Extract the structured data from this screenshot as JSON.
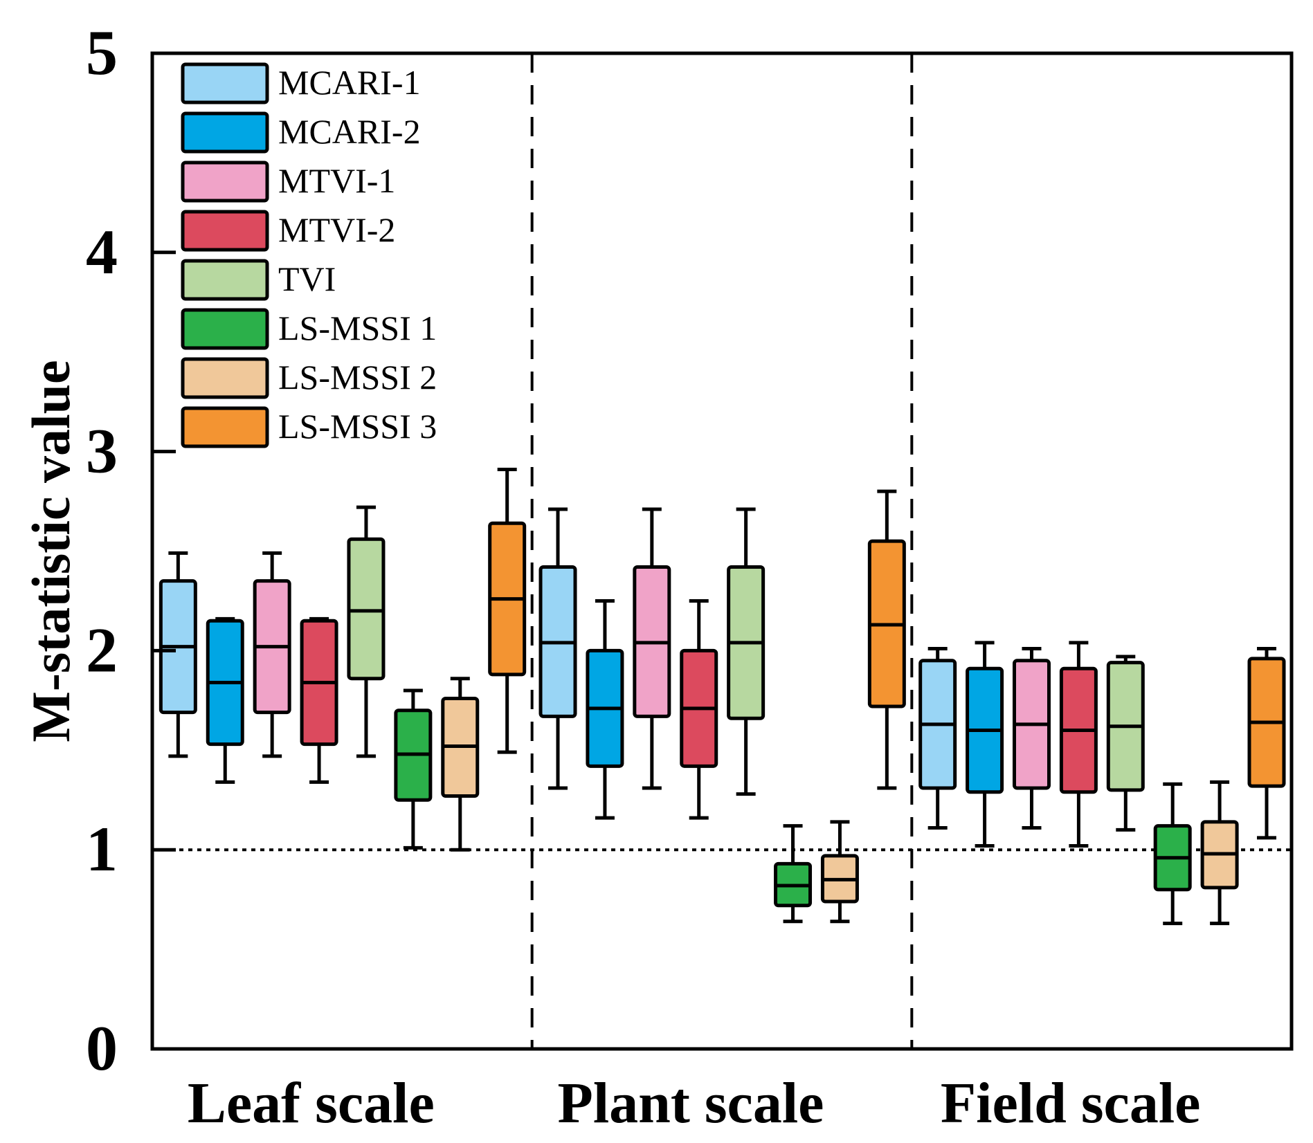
{
  "chart_data": {
    "type": "box",
    "title": "",
    "xlabel": "",
    "ylabel": "M-statistic value",
    "ylim": [
      0,
      5
    ],
    "yticks": [
      0,
      1,
      2,
      3,
      4,
      5
    ],
    "reference_line": {
      "y": 1,
      "style": "dotted"
    },
    "group_separators": "dashed",
    "groups": [
      "Leaf scale",
      "Plant scale",
      "Field scale"
    ],
    "legend": [
      {
        "name": "MCARI-1",
        "color": "#99d5f5"
      },
      {
        "name": "MCARI-2",
        "color": "#00a6e4"
      },
      {
        "name": "MTVI-1",
        "color": "#f0a3c8"
      },
      {
        "name": "MTVI-2",
        "color": "#dc4a5e"
      },
      {
        "name": "TVI",
        "color": "#b7d8a0"
      },
      {
        "name": "LS-MSSI 1",
        "color": "#2bb04a"
      },
      {
        "name": "LS-MSSI 2",
        "color": "#f0c89a"
      },
      {
        "name": "LS-MSSI 3",
        "color": "#f39432"
      }
    ],
    "series": [
      {
        "name": "MCARI-1",
        "color": "#99d5f5",
        "boxes": [
          {
            "group": "Leaf scale",
            "min": 1.47,
            "q1": 1.69,
            "median": 2.02,
            "q3": 2.35,
            "max": 2.49
          },
          {
            "group": "Plant scale",
            "min": 1.31,
            "q1": 1.67,
            "median": 2.04,
            "q3": 2.42,
            "max": 2.71
          },
          {
            "group": "Field scale",
            "min": 1.11,
            "q1": 1.31,
            "median": 1.63,
            "q3": 1.95,
            "max": 2.01
          }
        ]
      },
      {
        "name": "MCARI-2",
        "color": "#00a6e4",
        "boxes": [
          {
            "group": "Leaf scale",
            "min": 1.34,
            "q1": 1.53,
            "median": 1.84,
            "q3": 2.15,
            "max": 2.16
          },
          {
            "group": "Plant scale",
            "min": 1.16,
            "q1": 1.42,
            "median": 1.71,
            "q3": 2.0,
            "max": 2.25
          },
          {
            "group": "Field scale",
            "min": 1.02,
            "q1": 1.29,
            "median": 1.6,
            "q3": 1.91,
            "max": 2.04
          }
        ]
      },
      {
        "name": "MTVI-1",
        "color": "#f0a3c8",
        "boxes": [
          {
            "group": "Leaf scale",
            "min": 1.47,
            "q1": 1.69,
            "median": 2.02,
            "q3": 2.35,
            "max": 2.49
          },
          {
            "group": "Plant scale",
            "min": 1.31,
            "q1": 1.67,
            "median": 2.04,
            "q3": 2.42,
            "max": 2.71
          },
          {
            "group": "Field scale",
            "min": 1.11,
            "q1": 1.31,
            "median": 1.63,
            "q3": 1.95,
            "max": 2.01
          }
        ]
      },
      {
        "name": "MTVI-2",
        "color": "#dc4a5e",
        "boxes": [
          {
            "group": "Leaf scale",
            "min": 1.34,
            "q1": 1.53,
            "median": 1.84,
            "q3": 2.15,
            "max": 2.16
          },
          {
            "group": "Plant scale",
            "min": 1.16,
            "q1": 1.42,
            "median": 1.71,
            "q3": 2.0,
            "max": 2.25
          },
          {
            "group": "Field scale",
            "min": 1.02,
            "q1": 1.29,
            "median": 1.6,
            "q3": 1.91,
            "max": 2.04
          }
        ]
      },
      {
        "name": "TVI",
        "color": "#b7d8a0",
        "boxes": [
          {
            "group": "Leaf scale",
            "min": 1.47,
            "q1": 1.86,
            "median": 2.2,
            "q3": 2.56,
            "max": 2.72
          },
          {
            "group": "Plant scale",
            "min": 1.28,
            "q1": 1.66,
            "median": 2.04,
            "q3": 2.42,
            "max": 2.71
          },
          {
            "group": "Field scale",
            "min": 1.1,
            "q1": 1.3,
            "median": 1.62,
            "q3": 1.94,
            "max": 1.97
          }
        ]
      },
      {
        "name": "LS-MSSI 1",
        "color": "#2bb04a",
        "boxes": [
          {
            "group": "Leaf scale",
            "min": 1.01,
            "q1": 1.25,
            "median": 1.48,
            "q3": 1.7,
            "max": 1.8
          },
          {
            "group": "Plant scale",
            "min": 0.64,
            "q1": 0.72,
            "median": 0.82,
            "q3": 0.93,
            "max": 1.12
          },
          {
            "group": "Field scale",
            "min": 0.63,
            "q1": 0.8,
            "median": 0.96,
            "q3": 1.12,
            "max": 1.33
          }
        ]
      },
      {
        "name": "LS-MSSI 2",
        "color": "#f0c89a",
        "boxes": [
          {
            "group": "Leaf scale",
            "min": 1.0,
            "q1": 1.27,
            "median": 1.52,
            "q3": 1.76,
            "max": 1.86
          },
          {
            "group": "Plant scale",
            "min": 0.64,
            "q1": 0.74,
            "median": 0.85,
            "q3": 0.97,
            "max": 1.14
          },
          {
            "group": "Field scale",
            "min": 0.63,
            "q1": 0.81,
            "median": 0.98,
            "q3": 1.14,
            "max": 1.34
          }
        ]
      },
      {
        "name": "LS-MSSI 3",
        "color": "#f39432",
        "boxes": [
          {
            "group": "Leaf scale",
            "min": 1.49,
            "q1": 1.88,
            "median": 2.26,
            "q3": 2.64,
            "max": 2.91
          },
          {
            "group": "Plant scale",
            "min": 1.31,
            "q1": 1.72,
            "median": 2.13,
            "q3": 2.55,
            "max": 2.8
          },
          {
            "group": "Field scale",
            "min": 1.06,
            "q1": 1.32,
            "median": 1.64,
            "q3": 1.96,
            "max": 2.01
          }
        ]
      }
    ]
  }
}
